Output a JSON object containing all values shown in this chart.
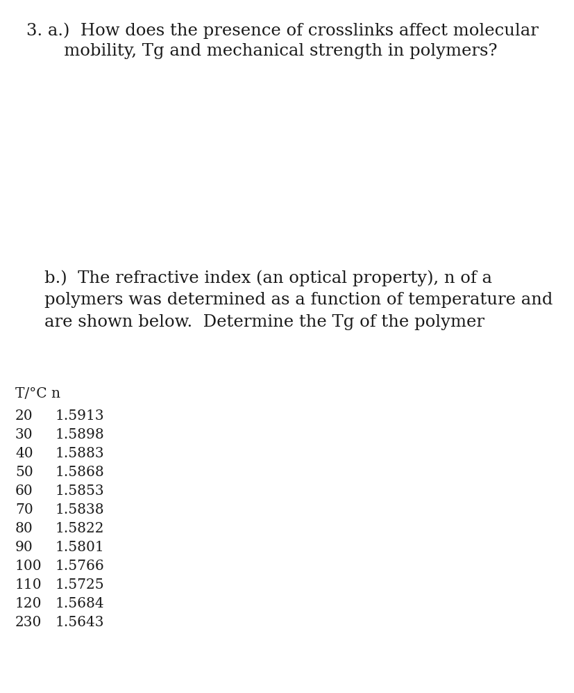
{
  "background_color": "#ffffff",
  "text_color": "#1a1a1a",
  "part_a_full_line1": "3. a.)  How does the presence of crosslinks affect molecular",
  "part_a_line2": "       mobility, Tg and mechanical strength in polymers?",
  "part_b_line1": "b.)  The refractive index (an optical property), n of a",
  "part_b_line2": "polymers was determined as a function of temperature and",
  "part_b_line3": "are shown below.  Determine the Tg of the polymer",
  "table_header": "T/°C n",
  "table_data": [
    [
      "20",
      "1.5913"
    ],
    [
      "30",
      "1.5898"
    ],
    [
      "40",
      "1.5883"
    ],
    [
      "50",
      "1.5868"
    ],
    [
      "60",
      "1.5853"
    ],
    [
      "70",
      "1.5838"
    ],
    [
      "80",
      "1.5822"
    ],
    [
      "90",
      "1.5801"
    ],
    [
      "100",
      "1.5766"
    ],
    [
      "110",
      "1.5725"
    ],
    [
      "120",
      "1.5684"
    ],
    [
      "230",
      "1.5643"
    ]
  ],
  "font_size_question": 17.5,
  "font_size_table": 14.5,
  "font_family": "serif"
}
